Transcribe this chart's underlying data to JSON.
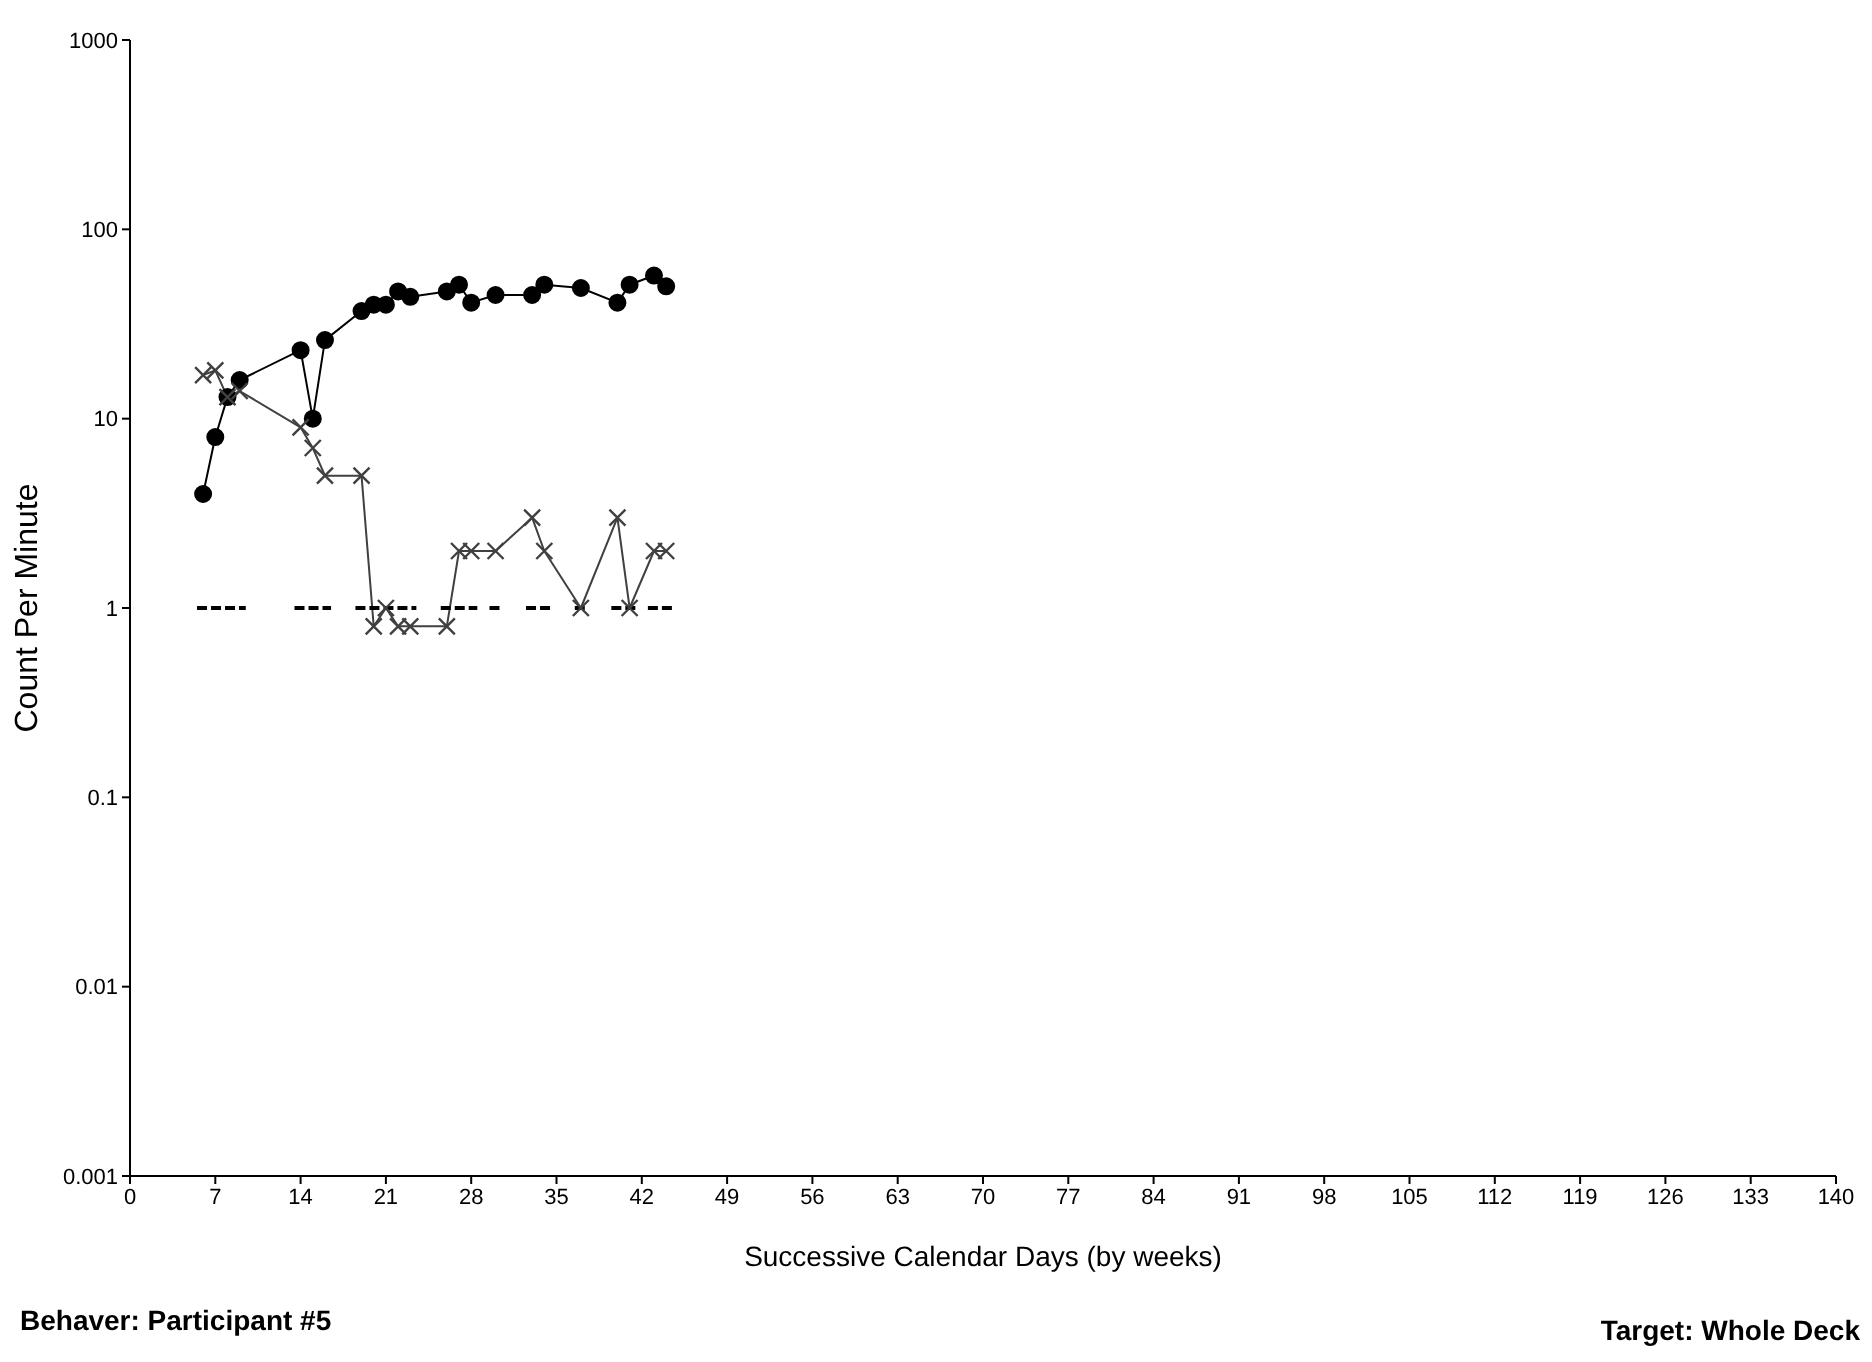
{
  "chart_data": {
    "type": "line",
    "xlabel": "Successive Calendar Days (by weeks)",
    "ylabel": "Count Per Minute",
    "annotations": [
      "Behaver: Participant #5",
      "Target: Whole Deck"
    ],
    "x": [
      6,
      7,
      8,
      9,
      14,
      15,
      16,
      19,
      20,
      21,
      22,
      23,
      26,
      27,
      28,
      30,
      33,
      34,
      37,
      40,
      41,
      43,
      44
    ],
    "series": [
      {
        "color": "#000000",
        "marker": "circle",
        "values": [
          4,
          8,
          13,
          16,
          23,
          10,
          26,
          37,
          40,
          40,
          47,
          44,
          47,
          51,
          41,
          45,
          45,
          51,
          49,
          41,
          51,
          57,
          50
        ]
      },
      {
        "color": "#404040",
        "marker": "cross",
        "values": [
          17,
          18,
          13,
          14,
          9,
          7,
          5,
          5,
          0.8,
          1,
          0.8,
          0.8,
          0.8,
          2,
          2,
          2,
          3,
          2,
          1,
          3,
          1,
          2,
          2
        ]
      },
      {
        "color": "#000000",
        "marker": "none",
        "line_style": "dashed",
        "x": [
          5.5,
          9.5,
          11,
          13.5,
          16.5,
          17.5,
          18.5,
          23.5,
          24.5,
          25.5,
          28.5,
          29,
          29.5,
          30.5,
          31.5,
          32.5,
          34.5,
          35.5,
          36.5,
          37.5,
          38.5,
          39.5,
          41.5,
          42,
          42.5,
          44.5
        ],
        "values": [
          1,
          1,
          null,
          1,
          1,
          null,
          1,
          1,
          null,
          1,
          1,
          null,
          1,
          1,
          null,
          1,
          1,
          null,
          1,
          1,
          null,
          1,
          1,
          null,
          1,
          1
        ]
      }
    ],
    "log": "y",
    "xlim": [
      0,
      140
    ],
    "xticks": [
      0,
      7,
      14,
      21,
      28,
      35,
      42,
      49,
      56,
      63,
      70,
      77,
      84,
      91,
      98,
      105,
      112,
      119,
      126,
      133,
      140
    ],
    "ylim": [
      0.001,
      1000
    ],
    "yticks": [
      0.001,
      0.01,
      0.1,
      1,
      10,
      100,
      1000
    ],
    "grid": false
  }
}
